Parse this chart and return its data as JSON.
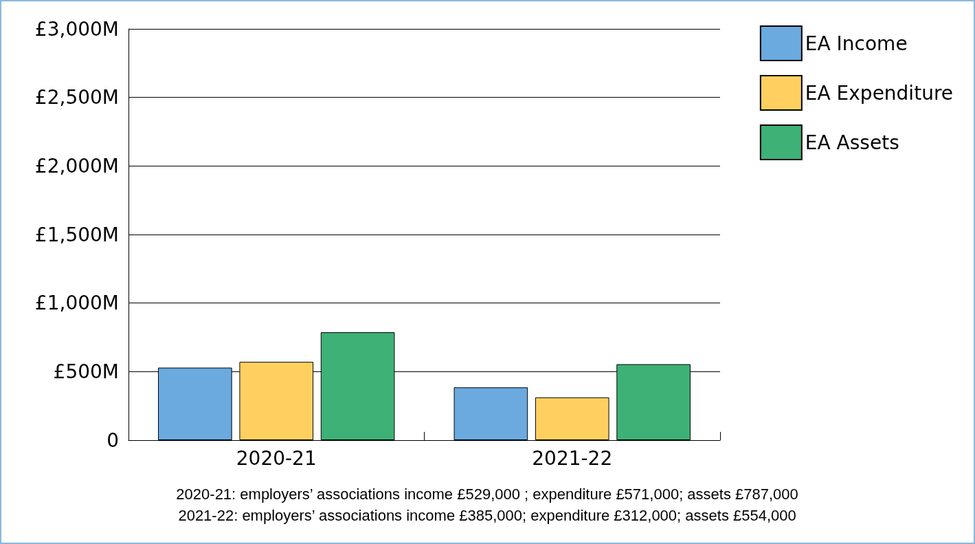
{
  "chart_data": {
    "type": "bar",
    "categories": [
      "2020-21",
      "2021-22"
    ],
    "series": [
      {
        "name": "EA Income",
        "color": "#6aaadf",
        "values": [
          529,
          385
        ]
      },
      {
        "name": "EA Expenditure",
        "color": "#ffd060",
        "values": [
          571,
          312
        ]
      },
      {
        "name": "EA Assets",
        "color": "#3db176",
        "values": [
          787,
          554
        ]
      }
    ],
    "ylim": [
      0,
      3000
    ],
    "yticks": [
      {
        "value": 0,
        "label": "0"
      },
      {
        "value": 500,
        "label": "£500M"
      },
      {
        "value": 1000,
        "label": "£1,000M"
      },
      {
        "value": 1500,
        "label": "£1,500M"
      },
      {
        "value": 2000,
        "label": "£2,000M"
      },
      {
        "value": 2500,
        "label": "£2,500M"
      },
      {
        "value": 3000,
        "label": "£3,000M"
      }
    ],
    "grid": "y",
    "legend": "right",
    "annotations": [
      "2020-21: employers’ associations income £529,000 ; expenditure £571,000; assets £787,000",
      "2021-22: employers’ associations income £385,000; expenditure £312,000; assets £554,000"
    ]
  }
}
